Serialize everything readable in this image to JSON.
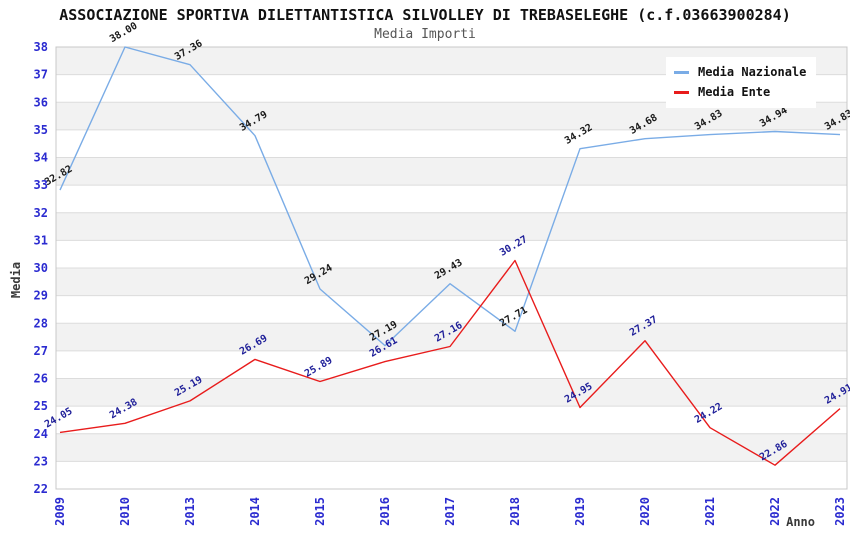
{
  "header": {
    "title": "ASSOCIAZIONE SPORTIVA DILETTANTISTICA SILVOLLEY DI TREBASELEGHE (c.f.03663900284)",
    "subtitle": "Media Importi"
  },
  "chart_data": {
    "type": "line",
    "categories": [
      "2009",
      "2010",
      "2013",
      "2014",
      "2015",
      "2016",
      "2017",
      "2018",
      "2019",
      "2020",
      "2021",
      "2022",
      "2023"
    ],
    "series": [
      {
        "name": "Media Nazionale",
        "color": "#7aace6",
        "label_color": "#1a1a1a",
        "values": [
          32.82,
          38.0,
          37.36,
          34.79,
          29.24,
          27.19,
          29.43,
          27.71,
          34.32,
          34.68,
          34.83,
          34.94,
          34.83
        ]
      },
      {
        "name": "Media Ente",
        "color": "#e81c1c",
        "label_color": "#1f1f99",
        "values": [
          24.05,
          24.38,
          25.19,
          26.69,
          25.89,
          26.61,
          27.16,
          30.27,
          24.95,
          27.37,
          24.22,
          22.86,
          24.91
        ]
      }
    ],
    "xlabel": "Anno",
    "ylabel": "Media",
    "ylim": [
      22,
      38
    ],
    "ytick_step": 1,
    "grid": "horizontal-bands",
    "legend_position": "top-right",
    "data_label_format": "2-decimals",
    "data_label_rotation_deg": -30
  },
  "colors": {
    "tick_label": "#2b2bd0",
    "axis_title": "#3a3a3a",
    "band_gray": "#f2f2f2",
    "band_white": "#ffffff",
    "gridline": "#dcdcdc",
    "plot_border": "#c8c8c8",
    "title": "#111111",
    "subtitle": "#555555",
    "legend_bg": "#ffffff"
  }
}
